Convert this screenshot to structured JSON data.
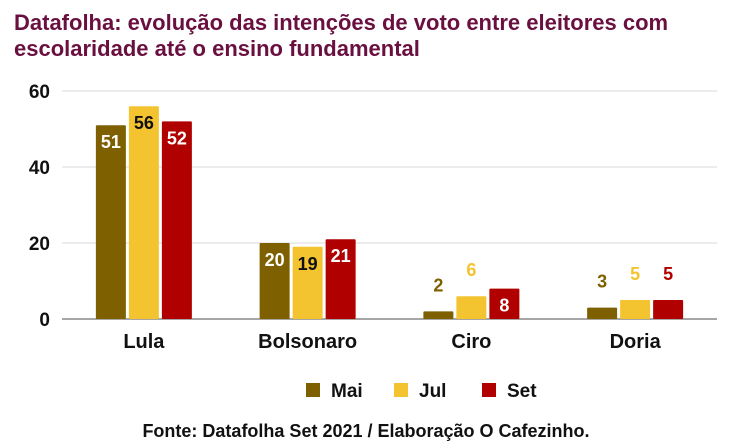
{
  "title": "Datafolha: evolução das intenções de voto entre eleitores com escolaridade até o ensino fundamental",
  "footer": "Fonte: Datafolha Set 2021 / Elaboração O Cafezinho.",
  "chart_data": {
    "type": "bar",
    "title": "Datafolha: evolução das intenções de voto entre eleitores com escolaridade até o ensino fundamental",
    "categories": [
      "Lula",
      "Bolsonaro",
      "Ciro",
      "Doria"
    ],
    "series": [
      {
        "name": "Mai",
        "values": [
          51,
          20,
          2,
          3
        ],
        "color": "#7f6000"
      },
      {
        "name": "Jul",
        "values": [
          56,
          19,
          6,
          5
        ],
        "color": "#f4c430"
      },
      {
        "name": "Set",
        "values": [
          52,
          21,
          8,
          5
        ],
        "color": "#b00000"
      }
    ],
    "ylim": [
      0,
      60
    ],
    "yticks": [
      0,
      20,
      40,
      60
    ],
    "grid": true,
    "legend": "bottom",
    "data_labels": true
  }
}
